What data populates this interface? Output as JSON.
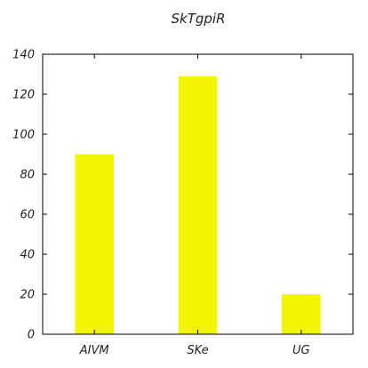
{
  "chart_data": {
    "type": "bar",
    "title": "SkTgpiR",
    "categories": [
      "AIVM",
      "SKe",
      "UG"
    ],
    "values": [
      90,
      129,
      20
    ],
    "xlabel": "",
    "ylabel": "",
    "ylim": [
      0,
      140
    ],
    "yticks": [
      0,
      20,
      40,
      60,
      80,
      100,
      120,
      140
    ],
    "grid": false,
    "legend": "none",
    "colors": {
      "bar": "#f2f500",
      "axis": "#000000",
      "text": "#222222",
      "background": "#ffffff"
    }
  }
}
